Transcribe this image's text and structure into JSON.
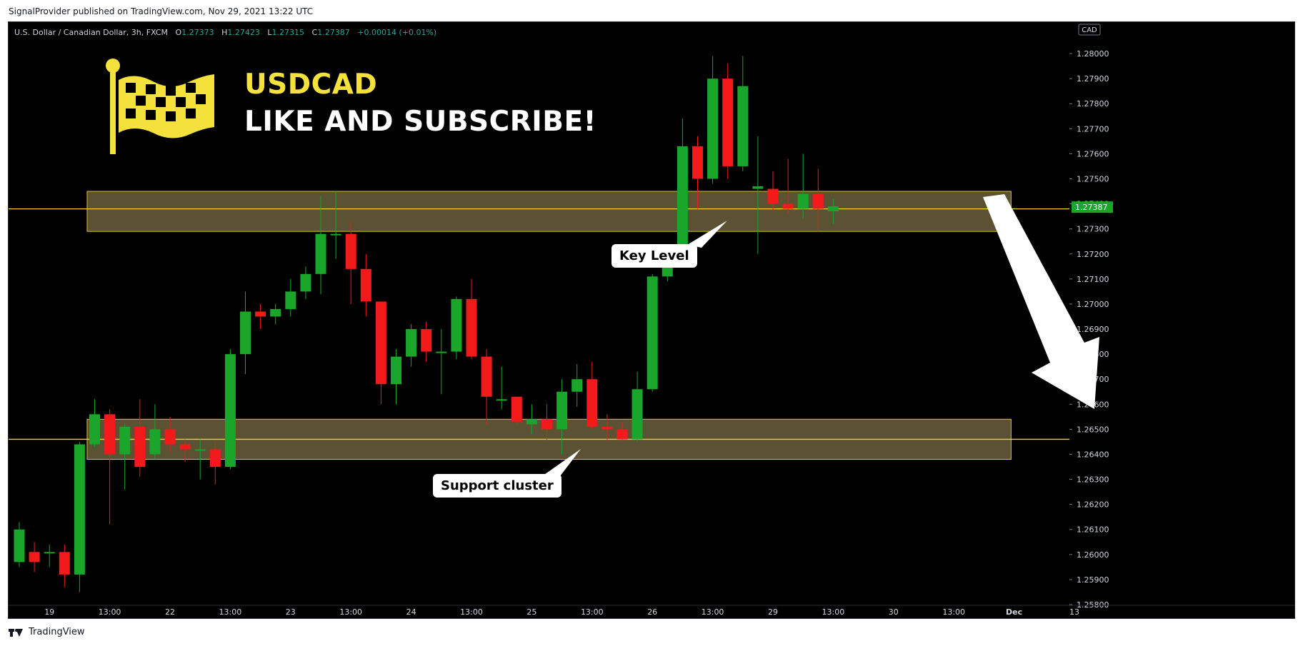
{
  "header": {
    "published_line": "SignalProvider published on TradingView.com, Nov 29, 2021 13:22 UTC"
  },
  "symbol_bar": {
    "name": "U.S. Dollar / Canadian Dollar, 3h, FXCM",
    "o_label": "O",
    "o_value": "1.27373",
    "h_label": "H",
    "h_value": "1.27423",
    "l_label": "L",
    "l_value": "1.27315",
    "c_label": "C",
    "c_value": "1.27387",
    "change": "+0.00014 (+0.01%)"
  },
  "overlay": {
    "title": "USDCAD",
    "subtitle": "LIKE AND SUBSCRIBE!"
  },
  "annotations": {
    "key_level": "Key Level",
    "support": "Support cluster"
  },
  "footer": {
    "brand": "TradingView"
  },
  "colors": {
    "up": "#1aa52b",
    "down": "#f21a1a",
    "zone": "#6b5f3c",
    "zone_border": "#d7c12c",
    "level": "#f2d21c",
    "accent": "#f5e13b"
  },
  "chart_data": {
    "type": "candlestick",
    "currency": "CAD",
    "last_price": 1.27387,
    "last_price_label": "1.27387",
    "ylim": [
      1.258,
      1.2806
    ],
    "y_ticks": [
      "1.28000",
      "1.27900",
      "1.27800",
      "1.27700",
      "1.27600",
      "1.27500",
      "1.27400",
      "1.27300",
      "1.27200",
      "1.27100",
      "1.27000",
      "1.26900",
      "1.26800",
      "1.26700",
      "1.26600",
      "1.26500",
      "1.26400",
      "1.26300",
      "1.26200",
      "1.26100",
      "1.26000",
      "1.25900",
      "1.25800"
    ],
    "x_ticks": [
      {
        "label": "19",
        "i": 2
      },
      {
        "label": "13:00",
        "i": 6
      },
      {
        "label": "22",
        "i": 10
      },
      {
        "label": "13:00",
        "i": 14
      },
      {
        "label": "23",
        "i": 18
      },
      {
        "label": "13:00",
        "i": 22
      },
      {
        "label": "24",
        "i": 26
      },
      {
        "label": "13:00",
        "i": 30
      },
      {
        "label": "25",
        "i": 34
      },
      {
        "label": "13:00",
        "i": 38
      },
      {
        "label": "26",
        "i": 42
      },
      {
        "label": "13:00",
        "i": 46
      },
      {
        "label": "29",
        "i": 50
      },
      {
        "label": "13:00",
        "i": 54
      },
      {
        "label": "30",
        "i": 58
      },
      {
        "label": "13:00",
        "i": 62
      },
      {
        "label": "Dec",
        "i": 66
      },
      {
        "label": "13",
        "i": 70
      }
    ],
    "zones": [
      {
        "from_i": 4.5,
        "to_i": 65.8,
        "low": 1.2729,
        "high": 1.2745,
        "level": 1.2738
      },
      {
        "from_i": 4.5,
        "to_i": 65.8,
        "low": 1.2638,
        "high": 1.2654,
        "level": 1.2646
      }
    ],
    "candles": [
      {
        "o": 1.2597,
        "h": 1.2613,
        "l": 1.2595,
        "c": 1.261
      },
      {
        "o": 1.2601,
        "h": 1.2605,
        "l": 1.2593,
        "c": 1.2597
      },
      {
        "o": 1.2601,
        "h": 1.2604,
        "l": 1.2595,
        "c": 1.2601
      },
      {
        "o": 1.2601,
        "h": 1.2604,
        "l": 1.2587,
        "c": 1.2592
      },
      {
        "o": 1.2592,
        "h": 1.2645,
        "l": 1.2585,
        "c": 1.2644
      },
      {
        "o": 1.2644,
        "h": 1.2662,
        "l": 1.2643,
        "c": 1.2656
      },
      {
        "o": 1.2656,
        "h": 1.2658,
        "l": 1.2612,
        "c": 1.264
      },
      {
        "o": 1.264,
        "h": 1.2652,
        "l": 1.2626,
        "c": 1.2651
      },
      {
        "o": 1.2651,
        "h": 1.2662,
        "l": 1.2631,
        "c": 1.2635
      },
      {
        "o": 1.264,
        "h": 1.266,
        "l": 1.2638,
        "c": 1.265
      },
      {
        "o": 1.265,
        "h": 1.2655,
        "l": 1.2641,
        "c": 1.2644
      },
      {
        "o": 1.2644,
        "h": 1.2646,
        "l": 1.2637,
        "c": 1.2642
      },
      {
        "o": 1.2642,
        "h": 1.2646,
        "l": 1.263,
        "c": 1.2642
      },
      {
        "o": 1.2642,
        "h": 1.2645,
        "l": 1.2628,
        "c": 1.2635
      },
      {
        "o": 1.2635,
        "h": 1.2682,
        "l": 1.2634,
        "c": 1.268
      },
      {
        "o": 1.268,
        "h": 1.2705,
        "l": 1.2672,
        "c": 1.2697
      },
      {
        "o": 1.2697,
        "h": 1.27,
        "l": 1.269,
        "c": 1.2695
      },
      {
        "o": 1.2695,
        "h": 1.27,
        "l": 1.2692,
        "c": 1.2698
      },
      {
        "o": 1.2698,
        "h": 1.271,
        "l": 1.2695,
        "c": 1.2705
      },
      {
        "o": 1.2705,
        "h": 1.2715,
        "l": 1.2702,
        "c": 1.2712
      },
      {
        "o": 1.2712,
        "h": 1.2743,
        "l": 1.2704,
        "c": 1.2728
      },
      {
        "o": 1.2728,
        "h": 1.2745,
        "l": 1.2718,
        "c": 1.2728
      },
      {
        "o": 1.2728,
        "h": 1.2733,
        "l": 1.27,
        "c": 1.2714
      },
      {
        "o": 1.2714,
        "h": 1.272,
        "l": 1.2695,
        "c": 1.2701
      },
      {
        "o": 1.2701,
        "h": 1.2701,
        "l": 1.266,
        "c": 1.2668
      },
      {
        "o": 1.2668,
        "h": 1.2682,
        "l": 1.266,
        "c": 1.2679
      },
      {
        "o": 1.2679,
        "h": 1.2692,
        "l": 1.2675,
        "c": 1.269
      },
      {
        "o": 1.269,
        "h": 1.2693,
        "l": 1.2677,
        "c": 1.2681
      },
      {
        "o": 1.2681,
        "h": 1.269,
        "l": 1.2664,
        "c": 1.2681
      },
      {
        "o": 1.2681,
        "h": 1.2703,
        "l": 1.2678,
        "c": 1.2702
      },
      {
        "o": 1.2702,
        "h": 1.271,
        "l": 1.2678,
        "c": 1.2679
      },
      {
        "o": 1.2679,
        "h": 1.2682,
        "l": 1.2652,
        "c": 1.2663
      },
      {
        "o": 1.2662,
        "h": 1.2675,
        "l": 1.2658,
        "c": 1.2662
      },
      {
        "o": 1.2663,
        "h": 1.2663,
        "l": 1.2652,
        "c": 1.2653
      },
      {
        "o": 1.2652,
        "h": 1.266,
        "l": 1.2648,
        "c": 1.2654
      },
      {
        "o": 1.2654,
        "h": 1.266,
        "l": 1.2645,
        "c": 1.265
      },
      {
        "o": 1.265,
        "h": 1.267,
        "l": 1.264,
        "c": 1.2665
      },
      {
        "o": 1.2665,
        "h": 1.2676,
        "l": 1.2659,
        "c": 1.267
      },
      {
        "o": 1.267,
        "h": 1.2677,
        "l": 1.265,
        "c": 1.2651
      },
      {
        "o": 1.2651,
        "h": 1.2656,
        "l": 1.2645,
        "c": 1.265
      },
      {
        "o": 1.265,
        "h": 1.2653,
        "l": 1.2645,
        "c": 1.2646
      },
      {
        "o": 1.2646,
        "h": 1.2673,
        "l": 1.2645,
        "c": 1.2666
      },
      {
        "o": 1.2666,
        "h": 1.2712,
        "l": 1.2665,
        "c": 1.2711
      },
      {
        "o": 1.2711,
        "h": 1.2723,
        "l": 1.2709,
        "c": 1.2722
      },
      {
        "o": 1.2722,
        "h": 1.2774,
        "l": 1.272,
        "c": 1.2763
      },
      {
        "o": 1.2763,
        "h": 1.2767,
        "l": 1.2738,
        "c": 1.275
      },
      {
        "o": 1.275,
        "h": 1.2799,
        "l": 1.2748,
        "c": 1.279
      },
      {
        "o": 1.279,
        "h": 1.2796,
        "l": 1.275,
        "c": 1.2755
      },
      {
        "o": 1.2755,
        "h": 1.2799,
        "l": 1.2753,
        "c": 1.2787
      },
      {
        "o": 1.2746,
        "h": 1.2767,
        "l": 1.272,
        "c": 1.2747
      },
      {
        "o": 1.2746,
        "h": 1.2753,
        "l": 1.2737,
        "c": 1.274
      },
      {
        "o": 1.274,
        "h": 1.2758,
        "l": 1.2736,
        "c": 1.2738
      },
      {
        "o": 1.2738,
        "h": 1.276,
        "l": 1.2734,
        "c": 1.2744
      },
      {
        "o": 1.2744,
        "h": 1.2754,
        "l": 1.2729,
        "c": 1.2738
      },
      {
        "o": 1.2737,
        "h": 1.2742,
        "l": 1.2732,
        "c": 1.2739
      }
    ]
  }
}
